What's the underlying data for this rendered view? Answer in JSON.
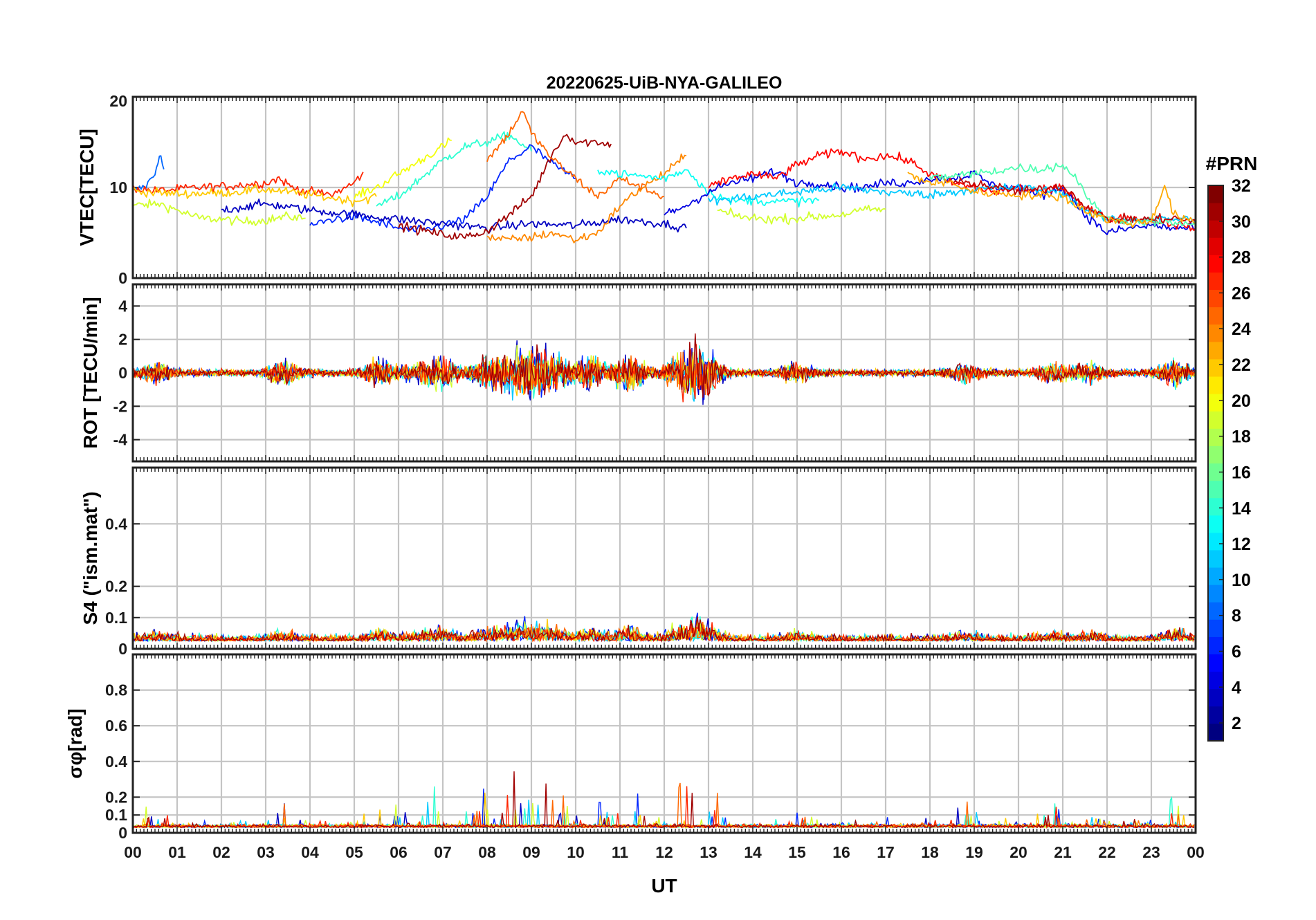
{
  "chart_data": {
    "type": "line",
    "title": "20220625-UiB-NYA-GALILEO",
    "xlabel": "UT",
    "x_ticks": [
      "00",
      "01",
      "02",
      "03",
      "04",
      "05",
      "06",
      "07",
      "08",
      "09",
      "10",
      "11",
      "12",
      "13",
      "14",
      "15",
      "16",
      "17",
      "18",
      "19",
      "20",
      "21",
      "22",
      "23",
      "00"
    ],
    "xlim": [
      0,
      24
    ],
    "colorbar": {
      "title": "#PRN",
      "colormap": "jet",
      "range": [
        1,
        32
      ],
      "ticks": [
        "2",
        "4",
        "6",
        "8",
        "10",
        "12",
        "14",
        "16",
        "18",
        "20",
        "22",
        "24",
        "26",
        "28",
        "30",
        "32"
      ]
    },
    "panels": [
      {
        "name": "vtec",
        "ylabel": "VTEC[TECU]",
        "ylim": [
          0,
          20
        ],
        "yticks": [
          "0",
          "10",
          "20"
        ],
        "series": [
          {
            "prn": 8,
            "points": [
              [
                0,
                9.5
              ],
              [
                0.3,
                10.2
              ],
              [
                0.5,
                11.5
              ],
              [
                0.6,
                13.8
              ],
              [
                0.7,
                12
              ]
            ]
          },
          {
            "prn": 19,
            "points": [
              [
                0,
                8
              ],
              [
                0.6,
                8.2
              ],
              [
                1,
                7.5
              ],
              [
                1.5,
                6.6
              ],
              [
                2,
                6.5
              ],
              [
                2.5,
                6.2
              ],
              [
                3,
                6.4
              ],
              [
                3.5,
                6.8
              ],
              [
                3.9,
                6.6
              ]
            ]
          },
          {
            "prn": 27,
            "points": [
              [
                0,
                10
              ],
              [
                0.5,
                9.6
              ],
              [
                1,
                9.8
              ],
              [
                1.5,
                10
              ],
              [
                2,
                10.1
              ],
              [
                2.5,
                10.3
              ],
              [
                3,
                10.5
              ],
              [
                3.3,
                11
              ],
              [
                3.6,
                10
              ],
              [
                4,
                9.5
              ],
              [
                4.5,
                9.2
              ],
              [
                5,
                10.5
              ],
              [
                5.2,
                11.7
              ]
            ]
          },
          {
            "prn": 22,
            "points": [
              [
                0,
                9.6
              ],
              [
                1,
                9.3
              ],
              [
                2,
                9.4
              ],
              [
                3,
                9.8
              ],
              [
                4,
                9.2
              ],
              [
                5,
                8.5
              ],
              [
                5.5,
                9
              ]
            ]
          },
          {
            "prn": 20,
            "points": [
              [
                5,
                9
              ],
              [
                5.5,
                10
              ],
              [
                6,
                11.5
              ],
              [
                6.5,
                13
              ],
              [
                7,
                14.5
              ],
              [
                7.2,
                15.2
              ]
            ]
          },
          {
            "prn": 14,
            "points": [
              [
                5.5,
                8
              ],
              [
                6,
                9
              ],
              [
                6.5,
                11
              ],
              [
                7,
                13
              ],
              [
                7.5,
                14.5
              ],
              [
                8,
                15
              ],
              [
                8.5,
                15.8
              ],
              [
                9,
                14
              ]
            ]
          },
          {
            "prn": 6,
            "points": [
              [
                4,
                5.8
              ],
              [
                4.5,
                6.5
              ],
              [
                5,
                6.8
              ],
              [
                5.5,
                6.2
              ],
              [
                6,
                5.5
              ],
              [
                6.5,
                5.2
              ],
              [
                7,
                5.8
              ],
              [
                7.5,
                6.5
              ],
              [
                8,
                9
              ],
              [
                8.5,
                13
              ],
              [
                9,
                14.5
              ],
              [
                9.5,
                12.5
              ],
              [
                10,
                11
              ]
            ]
          },
          {
            "prn": 3,
            "points": [
              [
                2,
                7.5
              ],
              [
                3,
                8.2
              ],
              [
                4,
                7.5
              ],
              [
                5,
                7
              ],
              [
                6,
                6.5
              ],
              [
                7,
                6
              ],
              [
                8,
                5.5
              ],
              [
                9,
                6
              ],
              [
                10,
                5.8
              ],
              [
                11,
                6.5
              ],
              [
                12,
                6
              ],
              [
                12.5,
                5.5
              ]
            ]
          },
          {
            "prn": 31,
            "points": [
              [
                6,
                5.8
              ],
              [
                6.5,
                5.3
              ],
              [
                7,
                4.8
              ],
              [
                7.5,
                4.5
              ],
              [
                8,
                5.2
              ],
              [
                8.5,
                7
              ],
              [
                9,
                9
              ],
              [
                9.5,
                14
              ],
              [
                9.8,
                16
              ],
              [
                10,
                15
              ],
              [
                10.5,
                15
              ],
              [
                10.8,
                14.8
              ]
            ]
          },
          {
            "prn": 25,
            "points": [
              [
                8,
                13
              ],
              [
                8.5,
                16
              ],
              [
                8.8,
                18.5
              ],
              [
                9,
                16
              ],
              [
                9.5,
                13
              ],
              [
                10,
                11
              ],
              [
                10.5,
                9
              ],
              [
                11,
                11
              ],
              [
                11.5,
                10
              ],
              [
                12,
                9
              ]
            ]
          },
          {
            "prn": 24,
            "points": [
              [
                8,
                4.5
              ],
              [
                8.5,
                4.2
              ],
              [
                9,
                4.5
              ],
              [
                9.5,
                5
              ],
              [
                10,
                4.2
              ],
              [
                10.5,
                5
              ],
              [
                11,
                8
              ],
              [
                11.5,
                10
              ],
              [
                12,
                11.5
              ],
              [
                12.5,
                13.5
              ]
            ]
          },
          {
            "prn": 13,
            "points": [
              [
                10.5,
                12
              ],
              [
                11,
                11.5
              ],
              [
                12,
                11
              ],
              [
                12.5,
                12
              ],
              [
                13,
                9.5
              ],
              [
                13.5,
                8.5
              ],
              [
                14,
                8.6
              ],
              [
                14.5,
                8.4
              ],
              [
                15,
                8.5
              ],
              [
                15.5,
                8.6
              ]
            ]
          },
          {
            "prn": 19,
            "points": [
              [
                13.2,
                7.5
              ],
              [
                13.5,
                7
              ],
              [
                14,
                6.6
              ],
              [
                14.5,
                6.5
              ],
              [
                15,
                6.6
              ],
              [
                15.5,
                6.8
              ],
              [
                16,
                7
              ],
              [
                16.5,
                7.5
              ],
              [
                17,
                7.6
              ]
            ]
          },
          {
            "prn": 4,
            "points": [
              [
                12,
                7
              ],
              [
                12.5,
                8
              ],
              [
                13,
                9.5
              ],
              [
                13.5,
                10.5
              ],
              [
                14,
                11
              ],
              [
                14.5,
                11.8
              ],
              [
                15,
                10.5
              ],
              [
                15.5,
                10.5
              ],
              [
                16,
                10
              ],
              [
                16.5,
                10
              ],
              [
                17,
                10.5
              ],
              [
                17.5,
                10.5
              ],
              [
                18,
                11
              ],
              [
                18.5,
                11
              ],
              [
                19,
                11.5
              ],
              [
                19.5,
                10
              ],
              [
                20,
                10
              ],
              [
                20.5,
                9
              ],
              [
                21,
                10
              ],
              [
                21.5,
                7
              ],
              [
                22,
                5
              ],
              [
                22.5,
                5.5
              ],
              [
                23,
                5.8
              ],
              [
                23.5,
                5.5
              ],
              [
                24,
                5.5
              ]
            ]
          },
          {
            "prn": 28,
            "points": [
              [
                13,
                10
              ],
              [
                13.5,
                11
              ],
              [
                14,
                11.5
              ],
              [
                14.5,
                11
              ],
              [
                15,
                12.5
              ],
              [
                15.5,
                13.5
              ],
              [
                16,
                14
              ],
              [
                16.5,
                13.2
              ],
              [
                17,
                13.5
              ],
              [
                17.5,
                13
              ],
              [
                18,
                11.5
              ],
              [
                18.5,
                10.5
              ],
              [
                19,
                10
              ],
              [
                19.5,
                9.5
              ],
              [
                20,
                10
              ],
              [
                20.5,
                9.5
              ],
              [
                21,
                10
              ],
              [
                21.5,
                8
              ],
              [
                22,
                6.5
              ],
              [
                22.5,
                6.5
              ],
              [
                23,
                6.4
              ],
              [
                23.5,
                6
              ],
              [
                24,
                5.5
              ]
            ]
          },
          {
            "prn": 11,
            "points": [
              [
                13,
                8.5
              ],
              [
                14,
                9
              ],
              [
                15,
                9.5
              ],
              [
                16,
                10
              ],
              [
                17,
                9.5
              ],
              [
                18,
                9.2
              ],
              [
                19,
                9.8
              ],
              [
                20,
                10
              ],
              [
                21,
                9.5
              ],
              [
                21.5,
                7.5
              ],
              [
                22,
                6.5
              ],
              [
                23,
                6.5
              ],
              [
                24,
                6.5
              ]
            ]
          },
          {
            "prn": 15,
            "points": [
              [
                18,
                11
              ],
              [
                19,
                11.5
              ],
              [
                20,
                12.2
              ],
              [
                20.5,
                12
              ],
              [
                21,
                12.5
              ],
              [
                21.4,
                10.5
              ],
              [
                21.6,
                8.5
              ],
              [
                22,
                6.5
              ],
              [
                23,
                6.2
              ],
              [
                23.5,
                6
              ],
              [
                24,
                6
              ]
            ]
          },
          {
            "prn": 30,
            "points": [
              [
                18.5,
                10.5
              ],
              [
                19,
                10.5
              ],
              [
                19.5,
                10
              ],
              [
                20,
                9.5
              ],
              [
                20.5,
                9.8
              ],
              [
                21,
                10.2
              ],
              [
                21.5,
                8
              ],
              [
                22,
                6.5
              ],
              [
                22.5,
                6.5
              ],
              [
                23,
                6.5
              ],
              [
                23.5,
                6.6
              ],
              [
                24,
                6.2
              ]
            ]
          },
          {
            "prn": 23,
            "points": [
              [
                17.5,
                11.5
              ],
              [
                18,
                10.5
              ],
              [
                18.5,
                10.5
              ],
              [
                19,
                9.5
              ],
              [
                20,
                9.2
              ],
              [
                21,
                9
              ],
              [
                21.5,
                7.5
              ],
              [
                22,
                6.5
              ],
              [
                22.5,
                6
              ],
              [
                23,
                6.3
              ],
              [
                23.3,
                10.3
              ],
              [
                23.5,
                7
              ],
              [
                24,
                6
              ]
            ]
          }
        ]
      },
      {
        "name": "rot",
        "ylabel": "ROT [TECU/min]",
        "ylim": [
          -5.3,
          5.3
        ],
        "yticks": [
          "-4",
          "-2",
          "0",
          "2",
          "4"
        ]
      },
      {
        "name": "s4",
        "ylabel": "S4 (\"ism.mat\")",
        "ylim": [
          0,
          0.58
        ],
        "yticks": [
          "0",
          "0.1",
          "0.2",
          "0.4"
        ]
      },
      {
        "name": "sigma_phi",
        "ylabel": "σφ[rad]",
        "ylim": [
          0,
          1.0
        ],
        "yticks": [
          "0",
          "0.1",
          "0.2",
          "0.4",
          "0.6",
          "0.8"
        ]
      }
    ]
  }
}
